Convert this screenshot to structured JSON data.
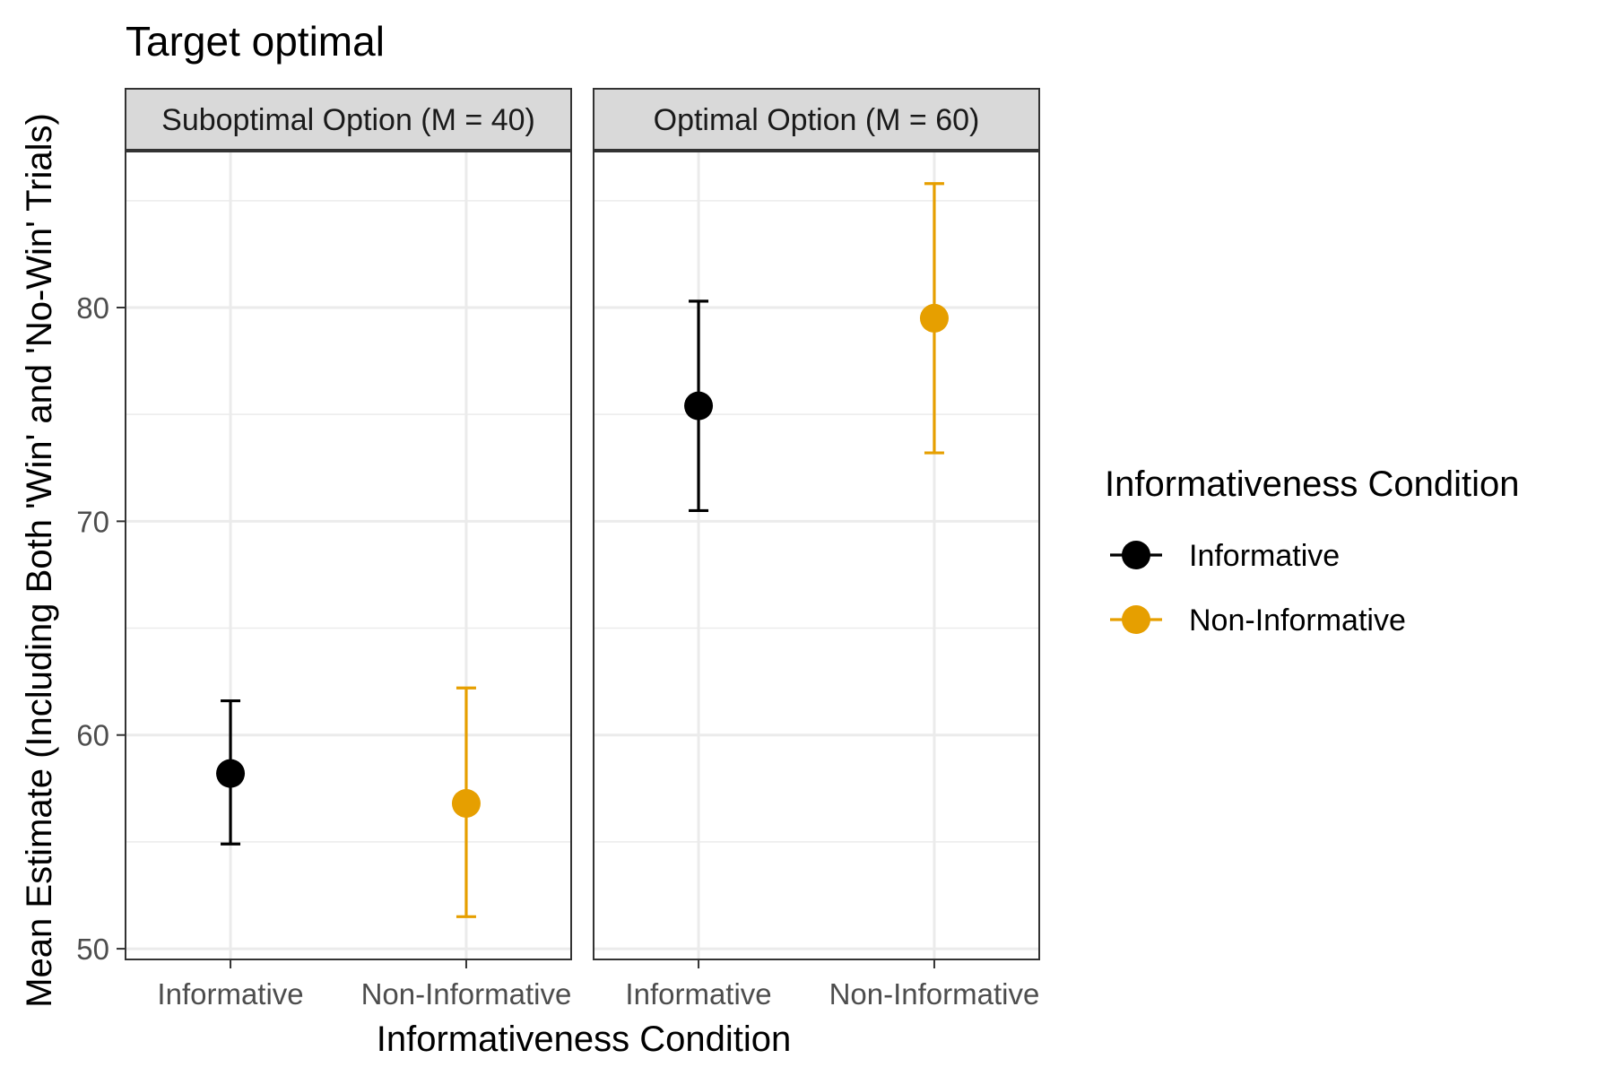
{
  "chart_data": {
    "type": "scatter",
    "title": "Target optimal",
    "xlabel": "Informativeness Condition",
    "ylabel": "Mean Estimate (Including Both 'Win' and 'No-Win' Trials)",
    "ylim": [
      49.5,
      87.3
    ],
    "yticks": [
      50,
      60,
      70,
      80
    ],
    "categories": [
      "Informative",
      "Non-Informative"
    ],
    "grid": true,
    "legend": {
      "title": "Informativeness Condition",
      "position": "right",
      "items": [
        {
          "label": "Informative",
          "color": "#000000"
        },
        {
          "label": "Non-Informative",
          "color": "#E69F00"
        }
      ]
    },
    "panels": [
      {
        "label": "Suboptimal Option (M = 40)",
        "points": [
          {
            "category": "Informative",
            "y": 58.2,
            "ymin": 54.9,
            "ymax": 61.6
          },
          {
            "category": "Non-Informative",
            "y": 56.8,
            "ymin": 51.5,
            "ymax": 62.2
          }
        ]
      },
      {
        "label": "Optimal Option (M = 60)",
        "points": [
          {
            "category": "Informative",
            "y": 75.4,
            "ymin": 70.5,
            "ymax": 80.3
          },
          {
            "category": "Non-Informative",
            "y": 79.5,
            "ymin": 73.2,
            "ymax": 85.8
          }
        ]
      }
    ]
  }
}
